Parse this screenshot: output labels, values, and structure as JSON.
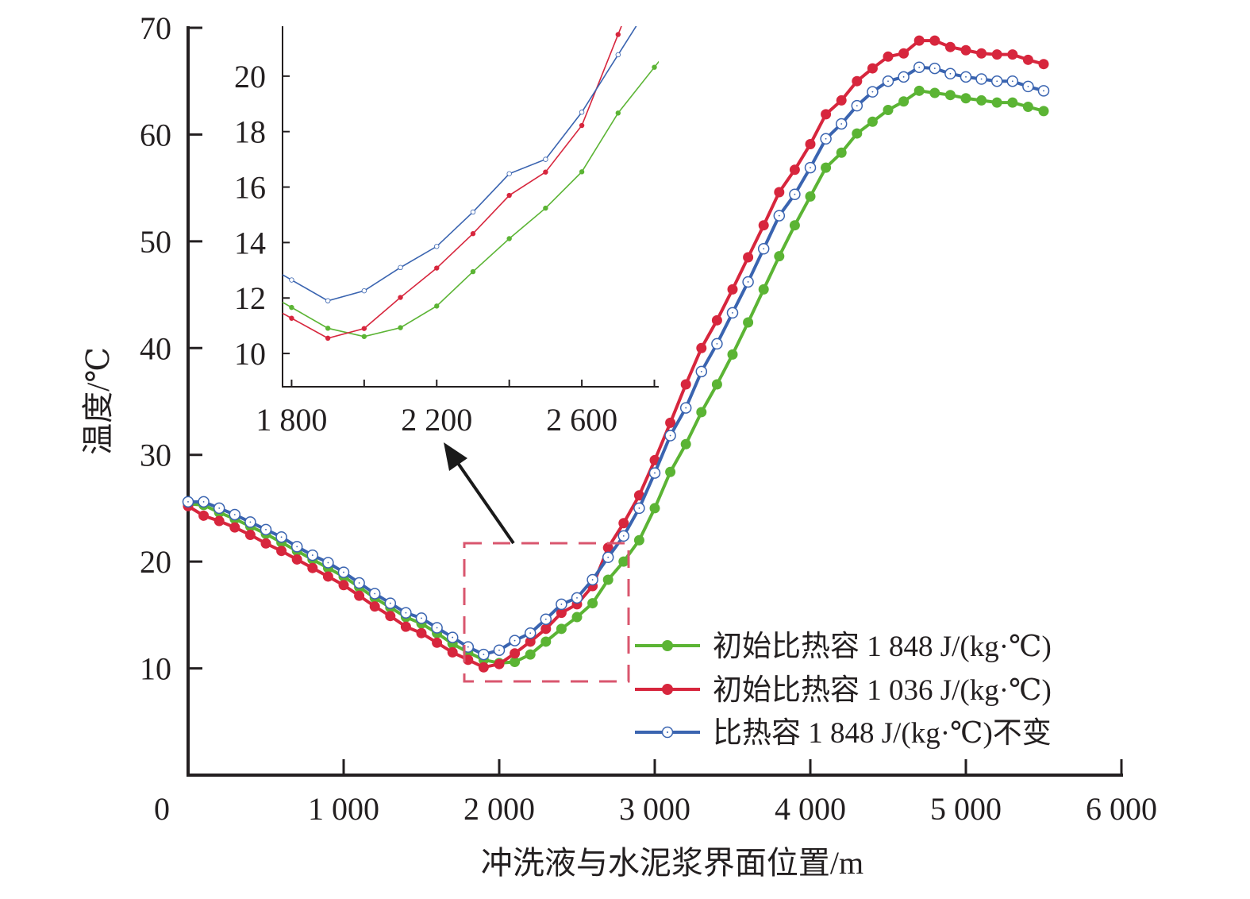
{
  "chart_data": [
    {
      "type": "line",
      "title": "",
      "xlabel": "冲洗液与水泥浆界面位置/m",
      "ylabel": "温度/℃",
      "xlim": [
        0,
        6000
      ],
      "ylim": [
        0,
        70
      ],
      "grid": false,
      "x_ticks": [
        0,
        1000,
        2000,
        3000,
        4000,
        5000,
        6000
      ],
      "x_tick_labels": [
        "0",
        "1 000",
        "2 000",
        "3 000",
        "4 000",
        "5 000",
        "6 000"
      ],
      "y_ticks": [
        10,
        20,
        30,
        40,
        50,
        60,
        70
      ],
      "y_tick_labels": [
        "10",
        "20",
        "30",
        "40",
        "50",
        "60",
        "70"
      ],
      "legend_position": "bottom-right",
      "x": [
        0,
        100,
        200,
        300,
        400,
        500,
        600,
        700,
        800,
        900,
        1000,
        1100,
        1200,
        1300,
        1400,
        1500,
        1600,
        1700,
        1800,
        1900,
        2000,
        2100,
        2200,
        2300,
        2400,
        2500,
        2600,
        2700,
        2800,
        2900,
        3000,
        3100,
        3200,
        3300,
        3400,
        3500,
        3600,
        3700,
        3800,
        3900,
        4000,
        4100,
        4200,
        4300,
        4400,
        4500,
        4600,
        4700,
        4800,
        4900,
        5000,
        5100,
        5200,
        5300,
        5400,
        5500
      ],
      "series": [
        {
          "name": "初始比热容 1 848 J/(kg·℃)",
          "color": "#5bb434",
          "marker": "filled-circle",
          "values": [
            25.4,
            25.3,
            24.6,
            24.0,
            23.3,
            22.6,
            21.8,
            21.0,
            20.2,
            19.4,
            18.6,
            17.6,
            16.6,
            15.7,
            14.8,
            14.2,
            13.3,
            12.3,
            11.5,
            10.8,
            10.5,
            10.6,
            11.3,
            12.5,
            13.7,
            14.8,
            16.1,
            18.3,
            20.0,
            22.0,
            25.0,
            28.4,
            31.0,
            34.0,
            36.6,
            39.4,
            42.4,
            45.5,
            48.6,
            51.5,
            54.2,
            56.9,
            58.3,
            60.1,
            61.2,
            62.3,
            63.1,
            64.1,
            63.9,
            63.7,
            63.4,
            63.2,
            63.0,
            63.0,
            62.6,
            62.2
          ]
        },
        {
          "name": "初始比热容 1 036 J/(kg·℃)",
          "color": "#d7263d",
          "marker": "filled-circle",
          "values": [
            25.2,
            24.3,
            23.8,
            23.2,
            22.5,
            21.7,
            21.0,
            20.2,
            19.4,
            18.6,
            17.8,
            16.8,
            15.8,
            14.9,
            13.9,
            13.3,
            12.4,
            11.5,
            10.8,
            10.1,
            10.4,
            11.4,
            12.5,
            13.7,
            15.2,
            16.0,
            17.7,
            21.3,
            23.6,
            26.2,
            29.5,
            33.0,
            36.6,
            40.0,
            42.6,
            45.5,
            48.5,
            51.5,
            54.6,
            56.7,
            59.1,
            61.9,
            63.2,
            65.0,
            66.2,
            67.3,
            67.6,
            68.8,
            68.8,
            68.2,
            67.9,
            67.6,
            67.5,
            67.5,
            67.0,
            66.6
          ]
        },
        {
          "name": "比热容 1 848 J/(kg·℃)不变",
          "color": "#3a64b0",
          "marker": "open-circle",
          "values": [
            25.6,
            25.6,
            25.0,
            24.4,
            23.7,
            23.0,
            22.3,
            21.4,
            20.6,
            19.9,
            19.0,
            18.0,
            17.0,
            16.1,
            15.2,
            14.7,
            13.8,
            12.9,
            12.0,
            11.3,
            11.7,
            12.6,
            13.3,
            14.6,
            16.0,
            16.6,
            18.3,
            20.4,
            22.4,
            25.0,
            28.3,
            31.8,
            34.4,
            37.8,
            40.4,
            43.3,
            46.2,
            49.3,
            52.4,
            54.4,
            56.9,
            59.6,
            61.0,
            62.7,
            64.0,
            65.0,
            65.4,
            66.3,
            66.2,
            65.7,
            65.4,
            65.2,
            65.0,
            65.0,
            64.5,
            64.1
          ]
        }
      ],
      "annotation": "dashed box 1 800–2 800 m with arrow to inset"
    },
    {
      "type": "line",
      "title": "",
      "inset": true,
      "xlim": [
        1775,
        2812
      ],
      "ylim": [
        8.8,
        21.8
      ],
      "grid": false,
      "x_ticks": [
        1800,
        2000,
        2200,
        2400,
        2600,
        2800
      ],
      "x_tick_labels": [
        "1 800",
        "2 200",
        "2 600"
      ],
      "x_tick_labels_at": [
        1800,
        2200,
        2600
      ],
      "y_ticks": [
        10,
        12,
        14,
        16,
        18,
        20
      ],
      "y_tick_labels": [
        "10",
        "12",
        "14",
        "16",
        "18",
        "20"
      ],
      "series": [
        {
          "name": "初始比热容 1 848 J/(kg·℃)",
          "color": "#5bb434",
          "x": [
            1800,
            1900,
            2000,
            2100,
            2200,
            2300,
            2400,
            2500,
            2600,
            2700,
            2800
          ],
          "values": [
            11.66,
            10.91,
            10.61,
            10.93,
            11.71,
            12.95,
            14.14,
            15.24,
            16.55,
            18.67,
            20.32
          ]
        },
        {
          "name": "初始比热容 1 036 J/(kg·℃)",
          "color": "#d7263d",
          "x": [
            1800,
            1900,
            2000,
            2100,
            2200,
            2300,
            2400,
            2500,
            2600,
            2700
          ],
          "values": [
            11.27,
            10.55,
            10.9,
            12.02,
            13.08,
            14.32,
            15.7,
            16.54,
            18.22,
            21.5
          ]
        },
        {
          "name": "比热容 1 848 J/(kg·℃)不变",
          "color": "#3a64b0",
          "x": [
            1800,
            1900,
            2000,
            2100,
            2200,
            2300,
            2400,
            2500,
            2600,
            2700
          ],
          "values": [
            12.65,
            11.9,
            12.26,
            13.1,
            13.86,
            15.1,
            16.48,
            17.0,
            18.7,
            20.77
          ]
        }
      ]
    }
  ],
  "colors": {
    "axis": "#231f20",
    "highlight_box": "#d9566e",
    "arrow": "#1a1a1a"
  }
}
